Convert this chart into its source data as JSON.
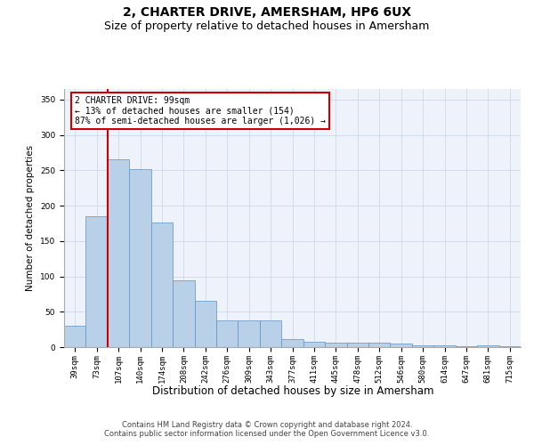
{
  "title": "2, CHARTER DRIVE, AMERSHAM, HP6 6UX",
  "subtitle": "Size of property relative to detached houses in Amersham",
  "xlabel": "Distribution of detached houses by size in Amersham",
  "ylabel": "Number of detached properties",
  "categories": [
    "39sqm",
    "73sqm",
    "107sqm",
    "140sqm",
    "174sqm",
    "208sqm",
    "242sqm",
    "276sqm",
    "309sqm",
    "343sqm",
    "377sqm",
    "411sqm",
    "445sqm",
    "478sqm",
    "512sqm",
    "546sqm",
    "580sqm",
    "614sqm",
    "647sqm",
    "681sqm",
    "715sqm"
  ],
  "values": [
    30,
    185,
    265,
    252,
    176,
    94,
    65,
    38,
    38,
    38,
    11,
    8,
    6,
    6,
    6,
    5,
    3,
    2,
    1,
    2,
    1
  ],
  "bar_color": "#b8d0e8",
  "bar_edge_color": "#6090c0",
  "vline_x_idx": 1.5,
  "vline_color": "#cc0000",
  "annotation_text": "2 CHARTER DRIVE: 99sqm\n← 13% of detached houses are smaller (154)\n87% of semi-detached houses are larger (1,026) →",
  "annotation_box_facecolor": "#ffffff",
  "annotation_box_edgecolor": "#cc0000",
  "ylim": [
    0,
    365
  ],
  "yticks": [
    0,
    50,
    100,
    150,
    200,
    250,
    300,
    350
  ],
  "grid_color": "#c8d4e4",
  "bg_color": "#eef2fa",
  "footer_line1": "Contains HM Land Registry data © Crown copyright and database right 2024.",
  "footer_line2": "Contains public sector information licensed under the Open Government Licence v3.0.",
  "title_fontsize": 10,
  "subtitle_fontsize": 9,
  "tick_fontsize": 6.5,
  "ylabel_fontsize": 7.5,
  "xlabel_fontsize": 8.5,
  "footer_fontsize": 6,
  "ann_fontsize": 7
}
